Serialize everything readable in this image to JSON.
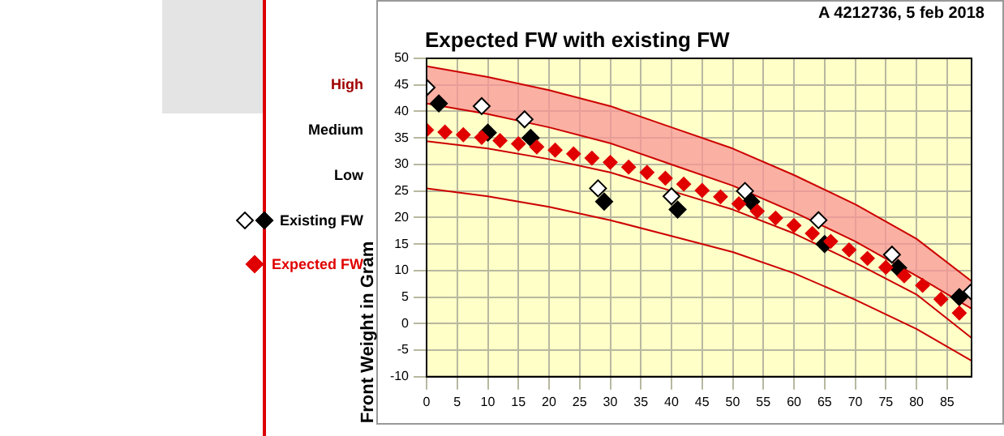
{
  "chart_data": {
    "type": "scatter",
    "title": "Expected FW with existing FW",
    "subtitle": "A 4212736, 5 feb 2018",
    "ylabel": "Front Weight in Gram",
    "annotations": [
      "High",
      "Medium",
      "Low"
    ],
    "xlim": [
      0,
      89
    ],
    "xticks": [
      0,
      5,
      10,
      15,
      20,
      25,
      30,
      35,
      40,
      45,
      50,
      55,
      60,
      65,
      70,
      75,
      80,
      85
    ],
    "ylim": [
      -10,
      50
    ],
    "yticks": [
      -10,
      -5,
      0,
      5,
      10,
      15,
      20,
      25,
      30,
      35,
      40,
      45,
      50
    ],
    "grid": true,
    "legend": "left",
    "series": [
      {
        "type": "line",
        "color": "#cc0000",
        "marker": "none",
        "x": [
          0,
          10,
          20,
          30,
          40,
          50,
          60,
          70,
          80,
          89
        ],
        "values": [
          48.5,
          46.5,
          44,
          41,
          37,
          33,
          28,
          22.5,
          16,
          8
        ]
      },
      {
        "type": "line",
        "color": "#cc0000",
        "marker": "none",
        "x": [
          0,
          10,
          20,
          30,
          40,
          50,
          60,
          70,
          80,
          89
        ],
        "values": [
          41.5,
          39.5,
          37,
          34,
          30,
          26,
          21,
          15.5,
          9,
          2.8
        ],
        "lower": [
          41.5,
          39.5,
          37,
          34,
          30,
          26,
          21,
          15.5,
          9,
          2.8
        ],
        "upper": [
          48.5,
          46.5,
          44,
          41,
          37,
          33,
          28,
          22.5,
          16,
          8
        ]
      },
      {
        "type": "line",
        "color": "#cc0000",
        "marker": "none",
        "x": [
          0,
          10,
          20,
          30,
          40,
          50,
          60,
          70,
          80,
          89
        ],
        "values": [
          34.4,
          33,
          31,
          28.5,
          25,
          21.5,
          17,
          11.5,
          5.5,
          -2.7
        ]
      },
      {
        "type": "line",
        "color": "#cc0000",
        "marker": "none",
        "x": [
          0,
          10,
          20,
          30,
          40,
          50,
          60,
          70,
          80,
          89
        ],
        "values": [
          25.5,
          24,
          22,
          19.5,
          16.5,
          13.5,
          9.5,
          4.5,
          -1,
          -7
        ]
      },
      {
        "name": "Expected FW",
        "type": "scatter",
        "color": "#e00000",
        "marker": "diamond",
        "x": [
          0,
          3,
          6,
          9,
          12,
          15,
          18,
          21,
          24,
          27,
          30,
          33,
          36,
          39,
          42,
          45,
          48,
          51,
          54,
          57,
          60,
          63,
          66,
          69,
          72,
          75,
          78,
          81,
          84,
          87
        ],
        "values": [
          36.5,
          36.1,
          35.6,
          35.1,
          34.5,
          33.9,
          33.3,
          32.7,
          32,
          31.2,
          30.4,
          29.5,
          28.5,
          27.4,
          26.3,
          25.1,
          23.9,
          22.6,
          21.2,
          19.9,
          18.5,
          17,
          15.5,
          13.9,
          12.3,
          10.6,
          9,
          7.2,
          4.6,
          2
        ]
      },
      {
        "type": "scatter",
        "color": "#000000",
        "marker": "diamond",
        "x": [
          2,
          10,
          17,
          29,
          41,
          53,
          65,
          77,
          87
        ],
        "values": [
          41.5,
          36,
          35,
          23,
          21.5,
          23,
          15,
          10.5,
          5
        ]
      },
      {
        "name": "Existing FW",
        "type": "scatter",
        "color": "#ffffff",
        "marker": "diamond",
        "x": [
          0,
          9,
          16,
          28,
          40,
          52,
          64,
          76,
          89
        ],
        "values": [
          44.5,
          41,
          38.5,
          25.5,
          24,
          25,
          19.5,
          13,
          6
        ]
      }
    ]
  }
}
